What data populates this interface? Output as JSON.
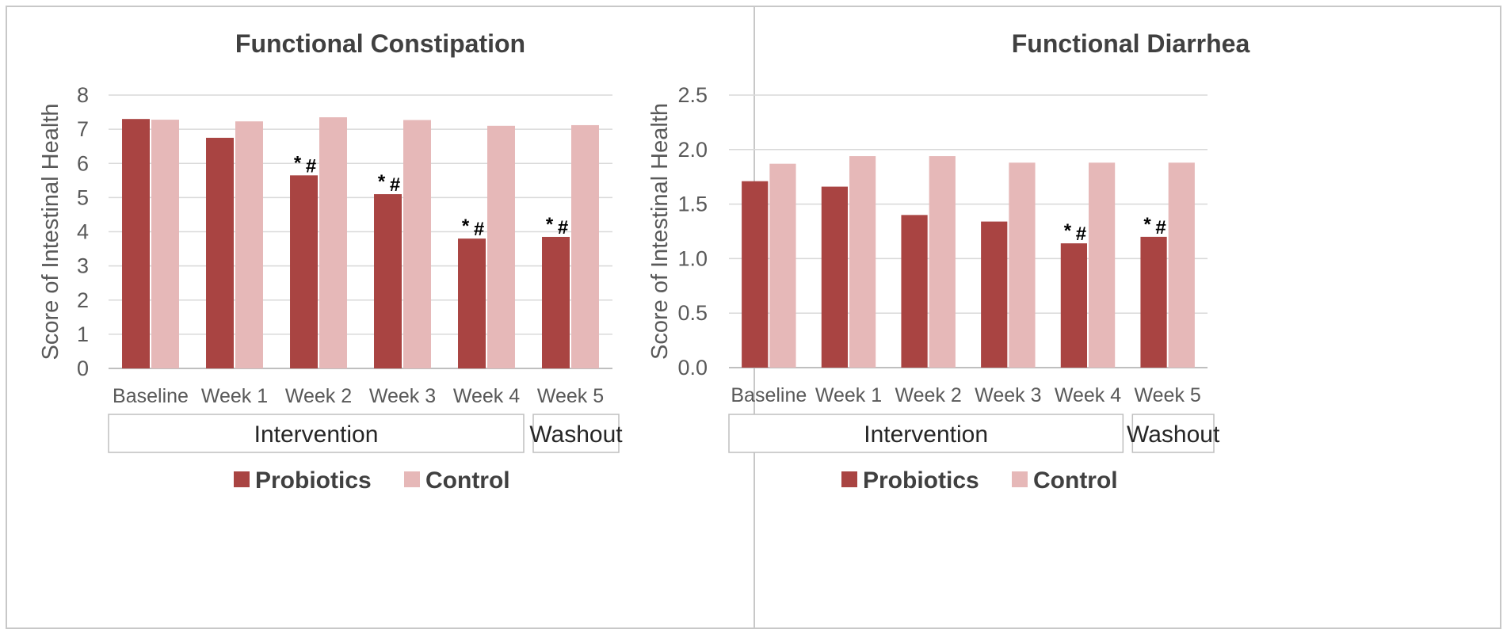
{
  "colors": {
    "probiotics": "#a94442",
    "control": "#e6b8b8"
  },
  "chart_data": [
    {
      "type": "bar",
      "title": "Functional  Constipation",
      "ylabel": "Score of Intestinal Health",
      "xlabel": "",
      "categories": [
        "Baseline",
        "Week 1",
        "Week 2",
        "Week 3",
        "Week 4",
        "Week 5"
      ],
      "ylim": [
        0,
        8
      ],
      "yticks": [
        0,
        1,
        2,
        3,
        4,
        5,
        6,
        7,
        8
      ],
      "ytick_labels": [
        "0",
        "1",
        "2",
        "3",
        "4",
        "5",
        "6",
        "7",
        "8"
      ],
      "grid": true,
      "series": [
        {
          "name": "Probiotics",
          "values": [
            7.3,
            6.75,
            5.65,
            5.1,
            3.8,
            3.85
          ]
        },
        {
          "name": "Control",
          "values": [
            7.28,
            7.23,
            7.35,
            7.27,
            7.1,
            7.12
          ]
        }
      ],
      "annotations": [
        {
          "category": "Week 2",
          "series": "Probiotics",
          "star": "*",
          "hash": "#"
        },
        {
          "category": "Week 3",
          "series": "Probiotics",
          "star": "*",
          "hash": "#"
        },
        {
          "category": "Week 4",
          "series": "Probiotics",
          "star": "*",
          "hash": "#"
        },
        {
          "category": "Week 5",
          "series": "Probiotics",
          "star": "*",
          "hash": "#"
        }
      ],
      "phases": [
        {
          "label": "Intervention",
          "categories": [
            "Baseline",
            "Week 1",
            "Week 2",
            "Week 3",
            "Week 4"
          ]
        },
        {
          "label": "Washout",
          "categories": [
            "Week 5"
          ]
        }
      ],
      "legend_position": "bottom"
    },
    {
      "type": "bar",
      "title": "Functional  Diarrhea",
      "ylabel": "Score of Intestinal Health",
      "xlabel": "",
      "categories": [
        "Baseline",
        "Week 1",
        "Week 2",
        "Week 3",
        "Week 4",
        "Week 5"
      ],
      "ylim": [
        0,
        2.5
      ],
      "yticks": [
        0,
        0.5,
        1,
        1.5,
        2,
        2.5
      ],
      "ytick_labels": [
        "0.0",
        "0.5",
        "1.0",
        "1.5",
        "2.0",
        "2.5"
      ],
      "grid": true,
      "series": [
        {
          "name": "Probiotics",
          "values": [
            1.71,
            1.66,
            1.4,
            1.34,
            1.14,
            1.2
          ]
        },
        {
          "name": "Control",
          "values": [
            1.87,
            1.94,
            1.94,
            1.88,
            1.88,
            1.88
          ]
        }
      ],
      "annotations": [
        {
          "category": "Week 4",
          "series": "Probiotics",
          "star": "*",
          "hash": "#"
        },
        {
          "category": "Week 5",
          "series": "Probiotics",
          "star": "*",
          "hash": "#"
        }
      ],
      "phases": [
        {
          "label": "Intervention",
          "categories": [
            "Baseline",
            "Week 1",
            "Week 2",
            "Week 3",
            "Week 4"
          ]
        },
        {
          "label": "Washout",
          "categories": [
            "Week 5"
          ]
        }
      ],
      "legend_position": "bottom"
    }
  ]
}
